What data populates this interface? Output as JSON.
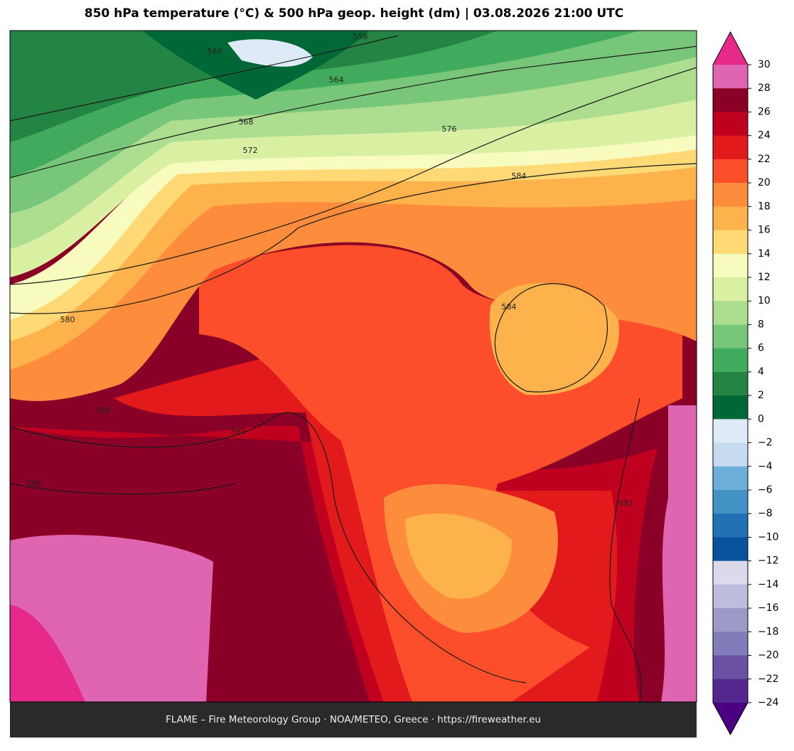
{
  "title": "850 hPa temperature (°C) & 500 hPa geop. height (dm)  |  03.08.2026 21:00 UTC",
  "footer": "FLAME – Fire Meteorology Group · NOA/METEO, Greece · https://fireweather.eu",
  "contour_labels": [
    556,
    560,
    564,
    568,
    572,
    576,
    580,
    584,
    584,
    588,
    592,
    596,
    592
  ],
  "colorbar": {
    "ticks": [
      "30",
      "28",
      "26",
      "24",
      "22",
      "20",
      "18",
      "16",
      "14",
      "12",
      "10",
      "8",
      "6",
      "4",
      "2",
      "0",
      "−2",
      "−4",
      "−6",
      "−8",
      "−10",
      "−12",
      "−14",
      "−16",
      "−18",
      "−20",
      "−22",
      "−24"
    ],
    "colors": [
      "#df65b0",
      "#8b0026",
      "#c0001f",
      "#e31a1c",
      "#fc4e2a",
      "#fd8d3c",
      "#feb24c",
      "#fed976",
      "#f7fbbd",
      "#d9f0a3",
      "#addd8e",
      "#78c679",
      "#41ab5d",
      "#238443",
      "#006837",
      "#deebf7",
      "#c6dbef",
      "#6baed6",
      "#4292c6",
      "#2171b5",
      "#08519c",
      "#dadaeb",
      "#bcbddc",
      "#9e9ac8",
      "#807dba",
      "#6a51a3",
      "#54278f"
    ],
    "over_color": "#e7298a",
    "under_color": "#4b0082"
  }
}
